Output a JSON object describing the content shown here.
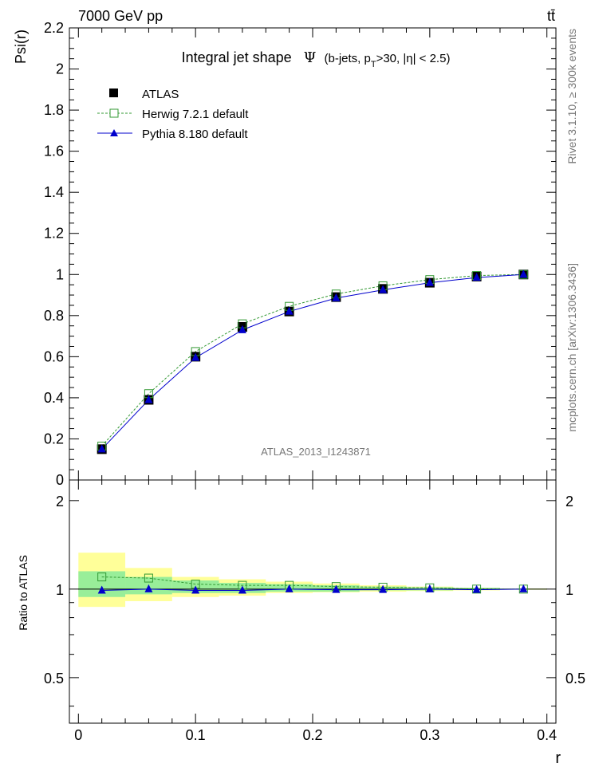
{
  "header": {
    "energy_label": "7000 GeV pp",
    "process_label": "tt̄"
  },
  "side_labels": {
    "right_top": "Rivet 3.1.10, ≥ 300k events",
    "right_bottom": "mcplots.cern.ch [arXiv:1306.3436]"
  },
  "chart_data": [
    {
      "type": "line",
      "panel": "main",
      "title": "Integral jet shape",
      "title_symbol": "Ψ",
      "title_selection": "(b-jets, p_T>30, |η| < 2.5)",
      "title_selection_parts": {
        "pre": "(b-jets, p",
        "sub": "T",
        "post": ">30, |η| < 2.5)"
      },
      "ylabel": "Psi(r)",
      "xlabel": "r",
      "xlim": [
        -0.0077,
        0.4077
      ],
      "ylim": [
        0,
        2.2
      ],
      "yticks": [
        0,
        0.2,
        0.4,
        0.6,
        0.8,
        1,
        1.2,
        1.4,
        1.6,
        1.8,
        2,
        2.2
      ],
      "ytick_labels": [
        "0",
        "0.2",
        "0.4",
        "0.6",
        "0.8",
        "1",
        "1.2",
        "1.4",
        "1.6",
        "1.8",
        "2",
        "2.2"
      ],
      "watermark": "ATLAS_2013_I1243871",
      "legend_position": "top-left",
      "x": [
        0.02,
        0.06,
        0.1,
        0.14,
        0.18,
        0.22,
        0.26,
        0.3,
        0.34,
        0.38
      ],
      "series": [
        {
          "name": "ATLAS",
          "style": "data",
          "color": "#000000",
          "values": [
            0.15,
            0.39,
            0.6,
            0.745,
            0.82,
            0.89,
            0.93,
            0.96,
            0.99,
            1.0
          ]
        },
        {
          "name": "Herwig 7.2.1 default",
          "style": "dashed-open-square",
          "color": "#339933",
          "values": [
            0.165,
            0.42,
            0.625,
            0.76,
            0.845,
            0.905,
            0.945,
            0.975,
            0.995,
            1.0
          ]
        },
        {
          "name": "Pythia 8.180 default",
          "style": "solid-triangle",
          "color": "#0000cc",
          "values": [
            0.15,
            0.39,
            0.595,
            0.73,
            0.82,
            0.885,
            0.925,
            0.96,
            0.985,
            1.0
          ]
        }
      ]
    },
    {
      "type": "line",
      "panel": "ratio",
      "ylabel": "Ratio to ATLAS",
      "xlabel": "r",
      "xlim": [
        -0.0077,
        0.4077
      ],
      "ylim": [
        0.35,
        2.35
      ],
      "log_y": true,
      "yticks": [
        0.5,
        1,
        2
      ],
      "ytick_labels": [
        "0.5",
        "1",
        "2"
      ],
      "xticks": [
        0,
        0.1,
        0.2,
        0.3,
        0.4
      ],
      "xtick_labels": [
        "0",
        "0.1",
        "0.2",
        "0.3",
        "0.4"
      ],
      "x": [
        0.02,
        0.06,
        0.1,
        0.14,
        0.18,
        0.22,
        0.26,
        0.3,
        0.34,
        0.38
      ],
      "bins": [
        [
          0,
          0.04
        ],
        [
          0.04,
          0.08
        ],
        [
          0.08,
          0.12
        ],
        [
          0.12,
          0.16
        ],
        [
          0.16,
          0.2
        ],
        [
          0.2,
          0.24
        ],
        [
          0.24,
          0.28
        ],
        [
          0.28,
          0.32
        ],
        [
          0.32,
          0.36
        ],
        [
          0.36,
          0.4
        ]
      ],
      "stat_band": [
        [
          0.94,
          1.15
        ],
        [
          0.96,
          1.1
        ],
        [
          0.97,
          1.07
        ],
        [
          0.97,
          1.05
        ],
        [
          0.98,
          1.04
        ],
        [
          0.98,
          1.03
        ],
        [
          0.99,
          1.02
        ],
        [
          0.99,
          1.015
        ],
        [
          0.995,
          1.01
        ],
        [
          0.997,
          1.003
        ]
      ],
      "total_band": [
        [
          0.87,
          1.33
        ],
        [
          0.91,
          1.18
        ],
        [
          0.94,
          1.1
        ],
        [
          0.95,
          1.08
        ],
        [
          0.97,
          1.06
        ],
        [
          0.975,
          1.045
        ],
        [
          0.98,
          1.03
        ],
        [
          0.985,
          1.02
        ],
        [
          0.99,
          1.01
        ],
        [
          0.995,
          1.005
        ]
      ],
      "band_colors": {
        "stat": "#99ee99",
        "total": "#ffff99"
      },
      "series": [
        {
          "name": "Herwig 7.2.1 default",
          "color": "#339933",
          "values": [
            1.1,
            1.09,
            1.04,
            1.03,
            1.03,
            1.02,
            1.015,
            1.01,
            1.0,
            1.0
          ]
        },
        {
          "name": "Pythia 8.180 default",
          "color": "#0000cc",
          "values": [
            0.99,
            1.0,
            0.99,
            0.99,
            1.0,
            0.995,
            0.995,
            1.0,
            0.995,
            1.0
          ]
        }
      ]
    }
  ]
}
